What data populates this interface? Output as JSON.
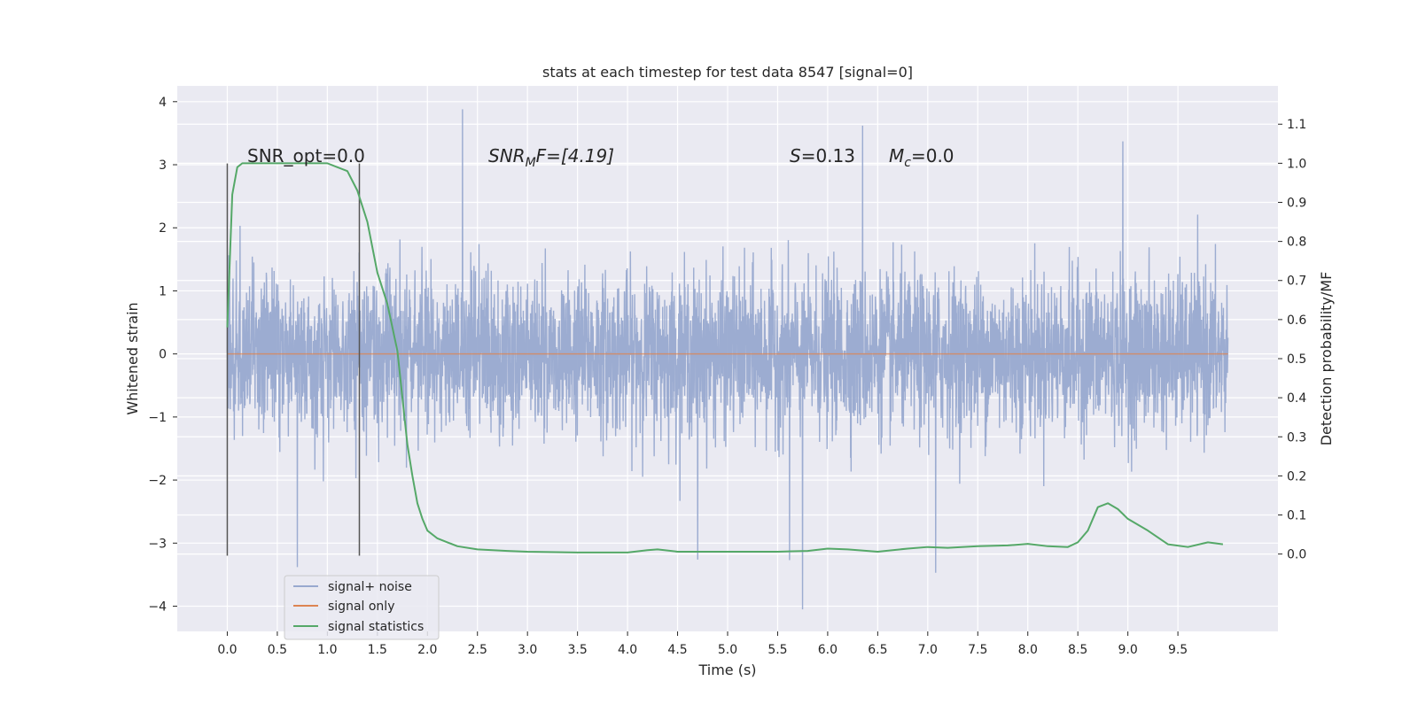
{
  "chart_data": {
    "type": "line",
    "title": "stats at each timestep for test data 8547 [signal=0]",
    "xlabel": "Time (s)",
    "ylabel": "Whitened strain",
    "y2label": "Detection probability/MF",
    "xlim": [
      -0.5,
      10.5
    ],
    "ylim": [
      -4.4,
      4.25
    ],
    "y2lim": [
      -0.198,
      1.198
    ],
    "xticks": [
      0.0,
      0.5,
      1.0,
      1.5,
      2.0,
      2.5,
      3.0,
      3.5,
      4.0,
      4.5,
      5.0,
      5.5,
      6.0,
      6.5,
      7.0,
      7.5,
      8.0,
      8.5,
      9.0,
      9.5
    ],
    "xtick_labels": [
      "0.0",
      "0.5",
      "1.0",
      "1.5",
      "2.0",
      "2.5",
      "3.0",
      "3.5",
      "4.0",
      "4.5",
      "5.0",
      "5.5",
      "6.0",
      "6.5",
      "7.0",
      "7.5",
      "8.0",
      "8.5",
      "9.0",
      "9.5"
    ],
    "yticks": [
      4,
      3,
      2,
      1,
      0,
      -1,
      -2,
      -3,
      -4
    ],
    "ytick_labels": [
      "4",
      "3",
      "2",
      "1",
      "0",
      "−1",
      "−2",
      "−3",
      "−4"
    ],
    "y2ticks": [
      1.1,
      1.0,
      0.9,
      0.8,
      0.7,
      0.6,
      0.5,
      0.4,
      0.3,
      0.2,
      0.1,
      0.0
    ],
    "y2tick_labels": [
      "1.1",
      "1.0",
      "0.9",
      "0.8",
      "0.7",
      "0.6",
      "0.5",
      "0.4",
      "0.3",
      "0.2",
      "0.1",
      "0.0"
    ],
    "grid": true,
    "legend_position": "lower-left",
    "annotations": {
      "snr_opt": "SNR_opt=0.0",
      "snr_mf_sym": "SNR",
      "snr_mf_sub": "M",
      "snr_mf_rest": "F=[4.19]",
      "s_sym": "S",
      "s_rest": "=0.13",
      "mc_sym": "M",
      "mc_sub": "c",
      "mc_rest": "=0.0"
    },
    "vertical_lines_x": [
      0.0,
      1.32
    ],
    "series": [
      {
        "name": "signal+ noise",
        "color": "#98a9cf",
        "axis": "left",
        "kind": "noise",
        "x_range": [
          0.0,
          10.0
        ],
        "envelope_typical": [
          -1.8,
          2.0
        ],
        "extremes": [
          {
            "x": 2.35,
            "y": 3.88
          },
          {
            "x": 6.35,
            "y": 3.62
          },
          {
            "x": 8.95,
            "y": 3.37
          },
          {
            "x": 5.75,
            "y": -4.05
          },
          {
            "x": 0.7,
            "y": -3.38
          },
          {
            "x": 7.08,
            "y": -3.47
          },
          {
            "x": 4.7,
            "y": -3.26
          },
          {
            "x": 5.62,
            "y": -3.27
          }
        ]
      },
      {
        "name": "signal only",
        "color": "#dd8452",
        "axis": "left",
        "x": [
          0.0,
          10.0
        ],
        "y": [
          0.0,
          0.0
        ]
      },
      {
        "name": "signal statistics",
        "color": "#55a868",
        "axis": "right",
        "x": [
          0.0,
          0.05,
          0.1,
          0.15,
          0.2,
          0.3,
          0.5,
          0.8,
          1.0,
          1.1,
          1.2,
          1.3,
          1.4,
          1.5,
          1.6,
          1.65,
          1.7,
          1.75,
          1.8,
          1.85,
          1.9,
          1.95,
          2.0,
          2.1,
          2.2,
          2.3,
          2.5,
          2.8,
          3.0,
          3.5,
          4.0,
          4.2,
          4.3,
          4.5,
          4.8,
          5.0,
          5.5,
          5.8,
          6.0,
          6.2,
          6.5,
          6.8,
          7.0,
          7.2,
          7.5,
          7.8,
          8.0,
          8.2,
          8.4,
          8.5,
          8.6,
          8.7,
          8.8,
          8.9,
          9.0,
          9.2,
          9.4,
          9.6,
          9.8,
          9.95
        ],
        "y": [
          0.58,
          0.92,
          0.99,
          1.0,
          1.0,
          1.0,
          1.0,
          1.0,
          1.0,
          0.99,
          0.98,
          0.93,
          0.85,
          0.72,
          0.64,
          0.58,
          0.52,
          0.4,
          0.28,
          0.2,
          0.13,
          0.09,
          0.06,
          0.04,
          0.03,
          0.02,
          0.012,
          0.008,
          0.006,
          0.004,
          0.004,
          0.01,
          0.012,
          0.006,
          0.006,
          0.006,
          0.006,
          0.008,
          0.014,
          0.012,
          0.006,
          0.014,
          0.018,
          0.016,
          0.02,
          0.022,
          0.026,
          0.02,
          0.018,
          0.03,
          0.06,
          0.12,
          0.13,
          0.115,
          0.09,
          0.06,
          0.025,
          0.018,
          0.03,
          0.025
        ]
      }
    ]
  }
}
